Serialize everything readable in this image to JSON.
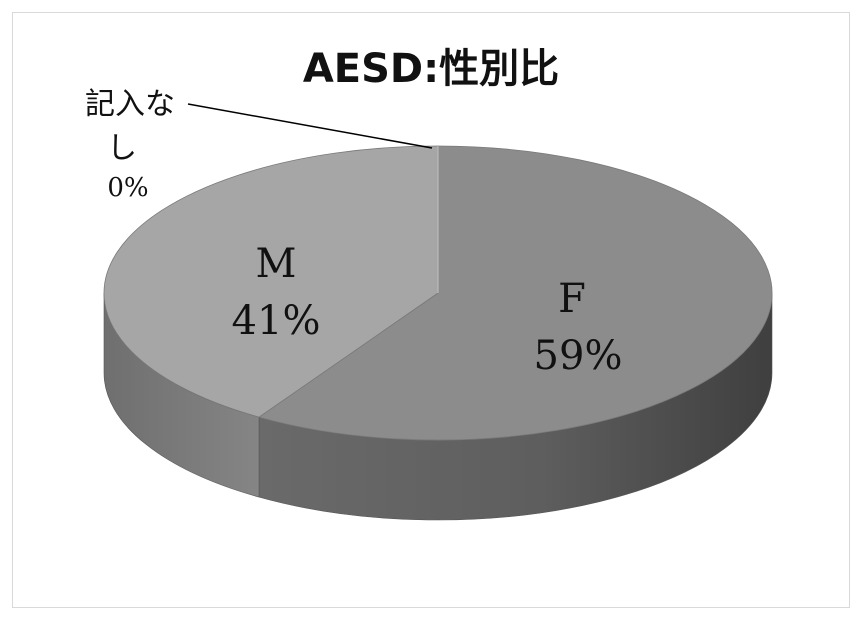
{
  "chart_data": {
    "type": "pie",
    "style": "3d",
    "title": "AESD:性別比",
    "series": [
      {
        "name": "",
        "slices": [
          {
            "label": "F",
            "value": 59,
            "percent_label": "59%",
            "color": "#8c8c8c"
          },
          {
            "label": "M",
            "value": 41,
            "percent_label": "41%",
            "color": "#a6a6a6"
          },
          {
            "label": "記入なし",
            "value": 0,
            "percent_label": "0%",
            "color": "#bfbfbf"
          }
        ]
      }
    ],
    "legend": "none",
    "data_labels": "category-and-percent"
  },
  "labels": {
    "none_line1": "記入な",
    "none_line2": "し"
  }
}
